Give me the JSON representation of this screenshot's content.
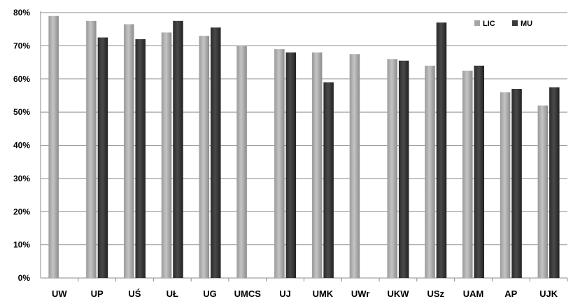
{
  "chart_data": {
    "type": "bar",
    "categories": [
      "UW",
      "UP",
      "UŚ",
      "UŁ",
      "UG",
      "UMCS",
      "UJ",
      "UMK",
      "UWr",
      "UKW",
      "USz",
      "UAM",
      "AP",
      "UJK"
    ],
    "series": [
      {
        "name": "LIC",
        "color": "#a6a6a6",
        "values": [
          79,
          77.5,
          76.5,
          74,
          73,
          70,
          69,
          68,
          67.5,
          66,
          64,
          62.5,
          56,
          52
        ]
      },
      {
        "name": "MU",
        "color": "#3a3a3a",
        "values": [
          null,
          72.5,
          72,
          77.5,
          75.5,
          null,
          68,
          59,
          null,
          65.5,
          77,
          64,
          57,
          57.5
        ]
      }
    ],
    "ylim": [
      0,
      80
    ],
    "y_ticks": [
      "0%",
      "10%",
      "20%",
      "30%",
      "40%",
      "50%",
      "60%",
      "70%",
      "80%"
    ],
    "grid": true,
    "legend_position": "top-right",
    "title": "",
    "xlabel": "",
    "ylabel": ""
  }
}
